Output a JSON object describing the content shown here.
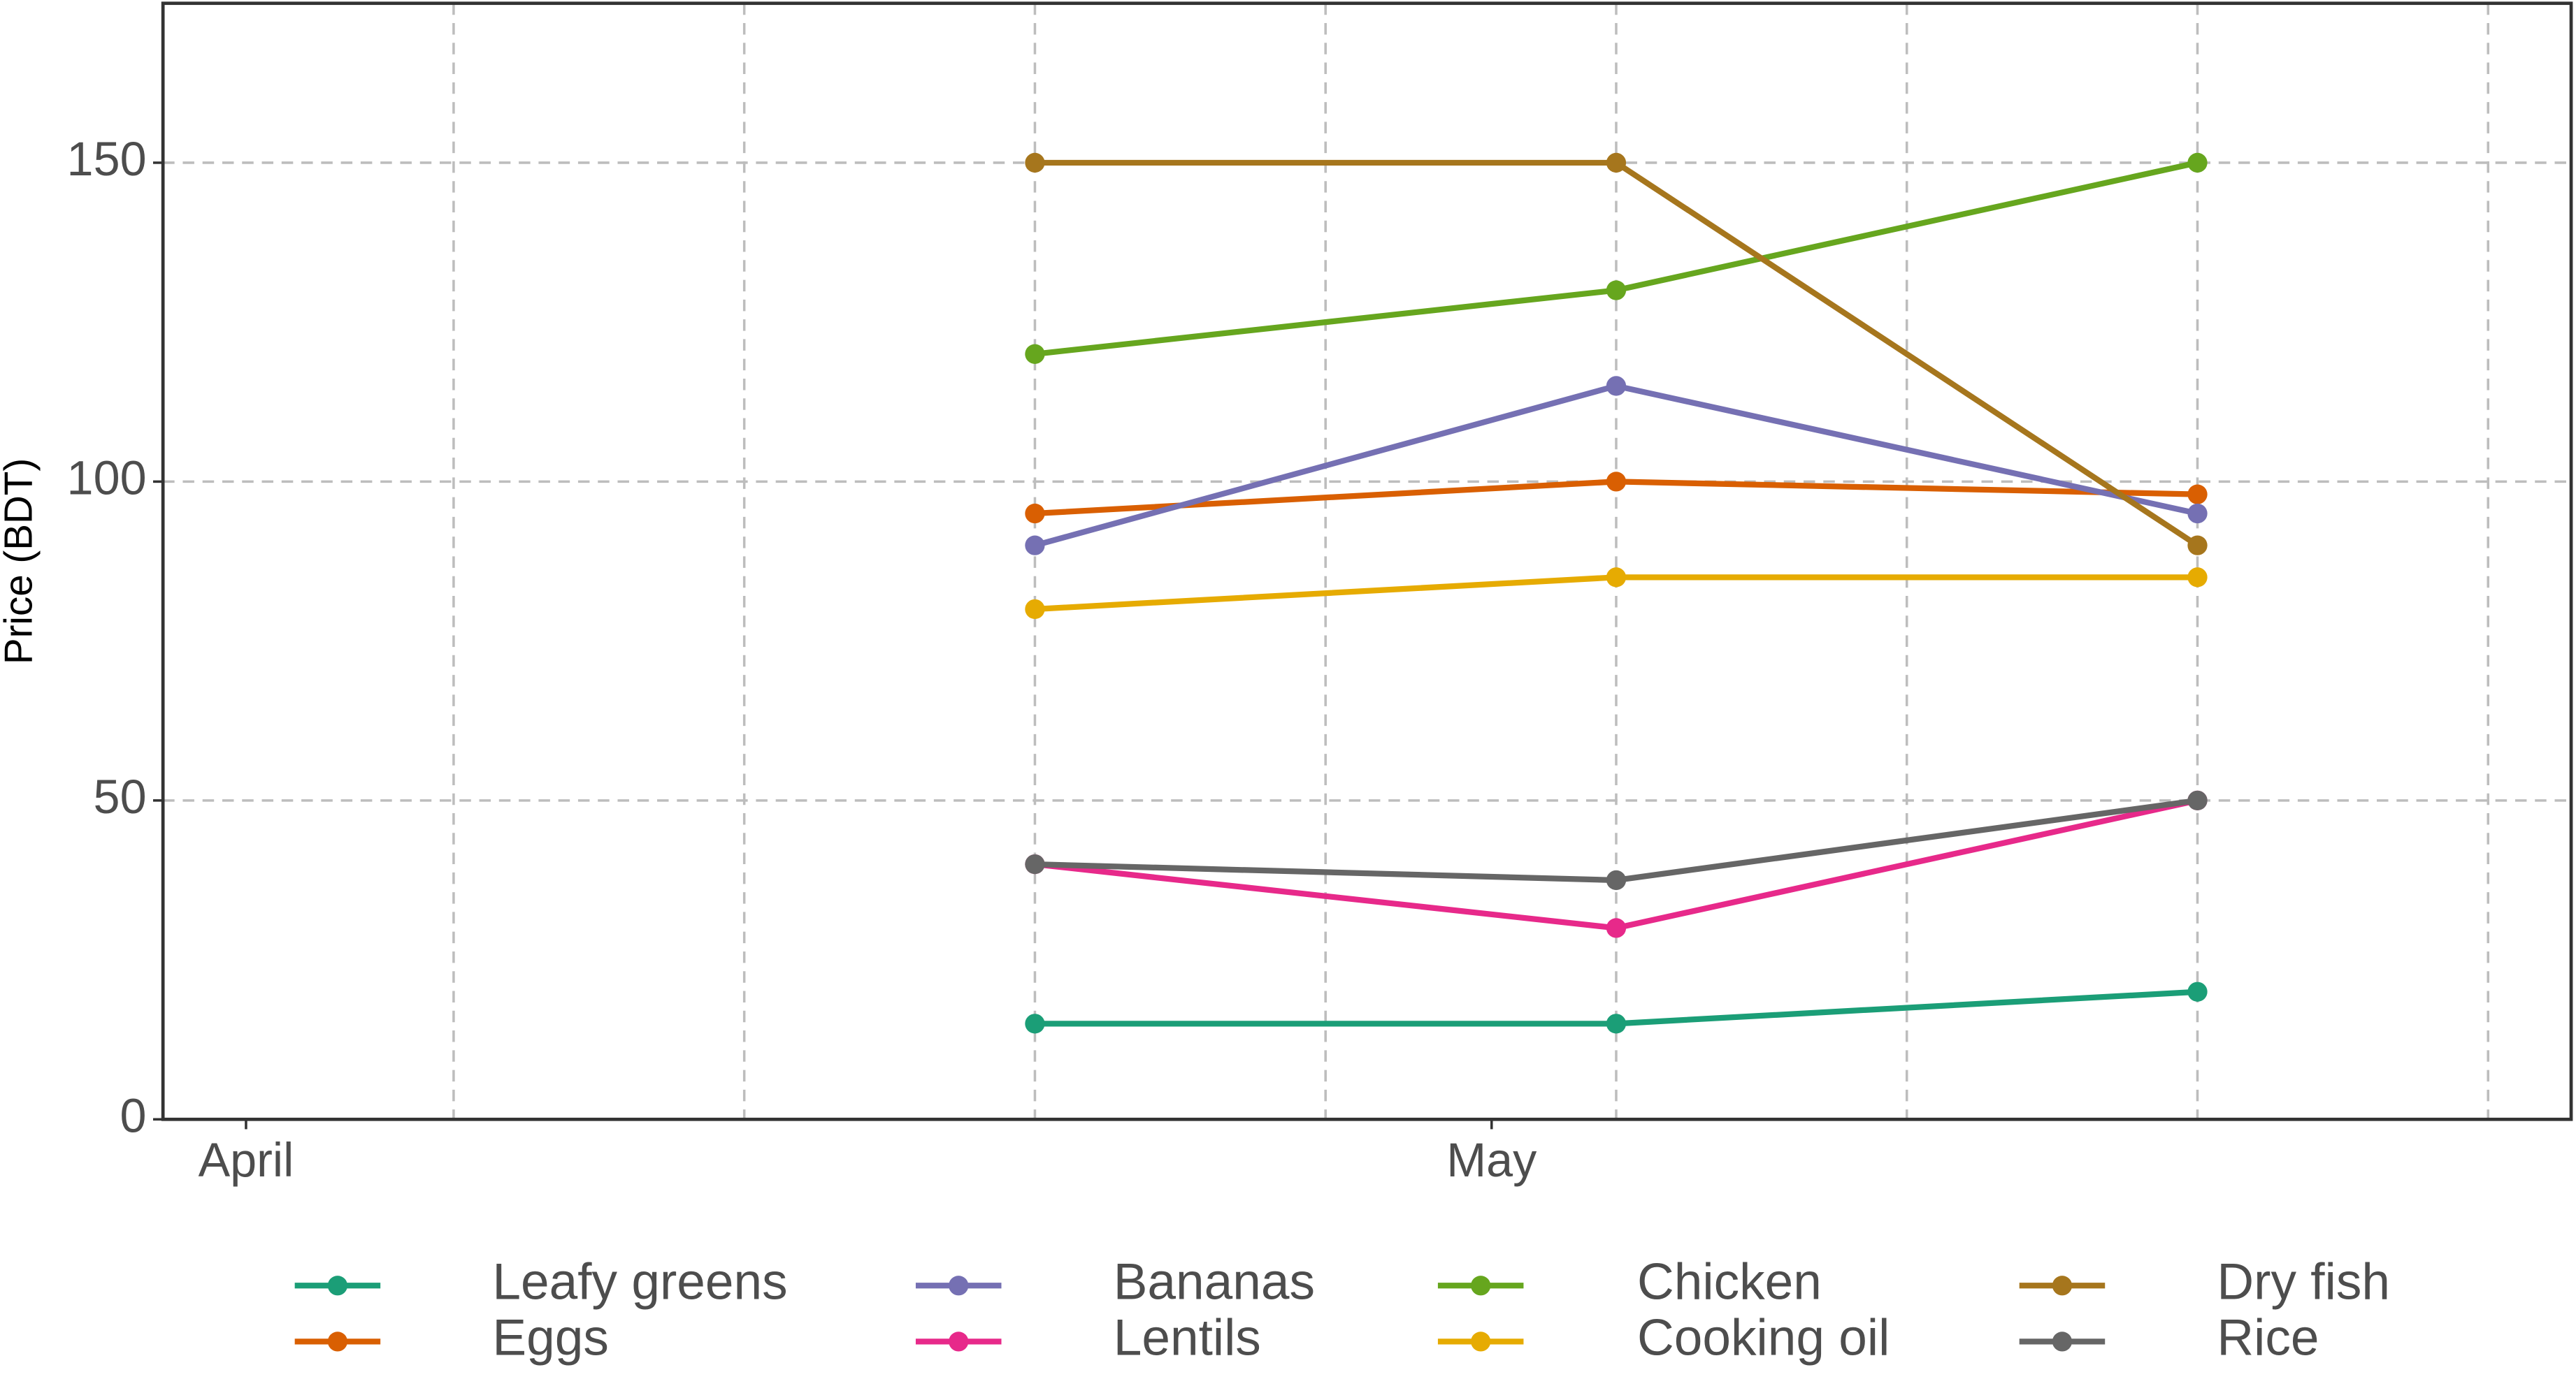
{
  "chart_data": {
    "type": "line",
    "y_label": "Price (BDT)",
    "x": [
      19,
      33,
      47
    ],
    "xlim": [
      -2,
      56
    ],
    "xticks": [
      {
        "value": 0,
        "label": "April"
      },
      {
        "value": 30,
        "label": "May"
      }
    ],
    "xgrid": [
      5,
      12,
      19,
      26,
      33,
      40,
      47,
      54
    ],
    "ylim": [
      0,
      175
    ],
    "yticks": [
      0,
      50,
      100,
      150
    ],
    "grid": true,
    "legend": "bottom",
    "series": [
      {
        "name": "Leafy greens",
        "color": "#1b9e77",
        "values": [
          15,
          15,
          20
        ]
      },
      {
        "name": "Eggs",
        "color": "#d95f02",
        "values": [
          95,
          100,
          98
        ]
      },
      {
        "name": "Bananas",
        "color": "#7570b3",
        "values": [
          90,
          115,
          95
        ]
      },
      {
        "name": "Lentils",
        "color": "#e7298a",
        "values": [
          40,
          30,
          50
        ]
      },
      {
        "name": "Chicken",
        "color": "#66a61e",
        "values": [
          120,
          130,
          150
        ]
      },
      {
        "name": "Cooking oil",
        "color": "#e6ab02",
        "values": [
          80,
          85,
          85
        ]
      },
      {
        "name": "Dry fish",
        "color": "#a6761d",
        "values": [
          150,
          150,
          90
        ]
      },
      {
        "name": "Rice",
        "color": "#666666",
        "values": [
          40,
          37.5,
          50
        ]
      }
    ]
  }
}
